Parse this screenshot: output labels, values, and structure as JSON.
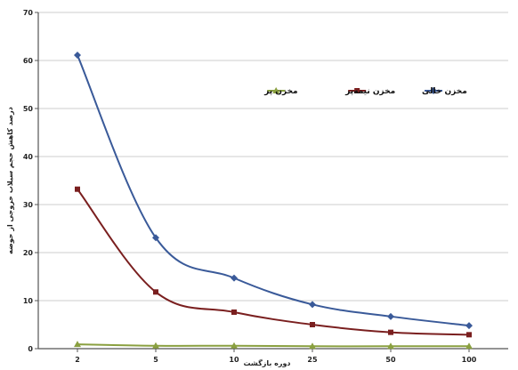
{
  "chart_data": {
    "type": "line",
    "title": "",
    "xlabel": "دوره بازگشت",
    "ylabel": "درصد کاهش حجم سیلاب خروجی از حوضه",
    "categories": [
      "2",
      "5",
      "10",
      "25",
      "50",
      "100"
    ],
    "ylim": [
      0,
      70
    ],
    "yticks": [
      "0",
      "10",
      "20",
      "30",
      "40",
      "50",
      "60",
      "70"
    ],
    "grid": "horizontal",
    "legend_position": "upper-right",
    "series": [
      {
        "name": "مخزن خالی",
        "values": [
          61.1,
          23.1,
          14.7,
          9.2,
          6.7,
          4.8
        ],
        "color": "#3a5a99",
        "marker": "diamond"
      },
      {
        "name": "مخزن نیمه‌پر",
        "values": [
          33.2,
          11.8,
          7.6,
          5.0,
          3.4,
          2.9
        ],
        "color": "#7a1f1f",
        "marker": "square"
      },
      {
        "name": "مخزن پر",
        "values": [
          0.9,
          0.6,
          0.6,
          0.5,
          0.5,
          0.5
        ],
        "color": "#8aa040",
        "marker": "triangle"
      }
    ]
  }
}
